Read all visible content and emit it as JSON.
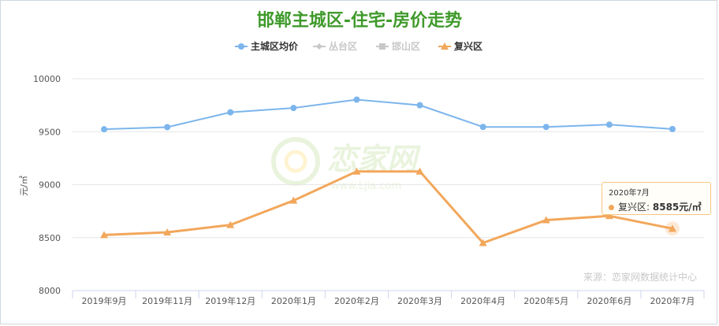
{
  "title": "邯郸主城区-住宅-房价走势",
  "ylabel": "元/㎡",
  "source": "来源：恋家网数据统计中心",
  "watermark": "恋家网",
  "watermark_url": "www.Ljia.com",
  "tooltip": {
    "title": "2020年7月",
    "series": "复兴区:",
    "value": "8585元/㎡"
  },
  "colors": {
    "blue": "#7cb5ec",
    "orange": "#f2a75b",
    "grey": "#c8c8c8",
    "title": "#3f9a2b"
  },
  "chart_data": {
    "type": "line",
    "title": "邯郸主城区-住宅-房价走势",
    "xlabel": "",
    "ylabel": "元/㎡",
    "ylim": [
      8000,
      10000
    ],
    "yticks": [
      8000,
      8500,
      9000,
      9500,
      10000
    ],
    "grid": true,
    "legend_position": "top-center",
    "categories": [
      "2019年9月",
      "2019年11月",
      "2019年12月",
      "2020年1月",
      "2020年2月",
      "2020年3月",
      "2020年4月",
      "2020年5月",
      "2020年6月",
      "2020年7月"
    ],
    "legend": [
      {
        "name": "主城区均价",
        "marker": "circle",
        "color": "#7cb5ec",
        "active": true
      },
      {
        "name": "丛台区",
        "marker": "diamond",
        "color": "#c8c8c8",
        "active": false
      },
      {
        "name": "邯山区",
        "marker": "square",
        "color": "#c8c8c8",
        "active": false
      },
      {
        "name": "复兴区",
        "marker": "triangle",
        "color": "#f2a75b",
        "active": true
      }
    ],
    "series": [
      {
        "name": "主城区均价",
        "marker": "circle",
        "color": "#7cb5ec",
        "values": [
          9523,
          9543,
          9683,
          9724,
          9803,
          9750,
          9545,
          9545,
          9567,
          9525
        ]
      },
      {
        "name": "复兴区",
        "marker": "triangle",
        "color": "#f2a75b",
        "values": [
          8525,
          8550,
          8620,
          8850,
          9125,
          9125,
          8450,
          8665,
          8705,
          8585
        ]
      }
    ]
  }
}
